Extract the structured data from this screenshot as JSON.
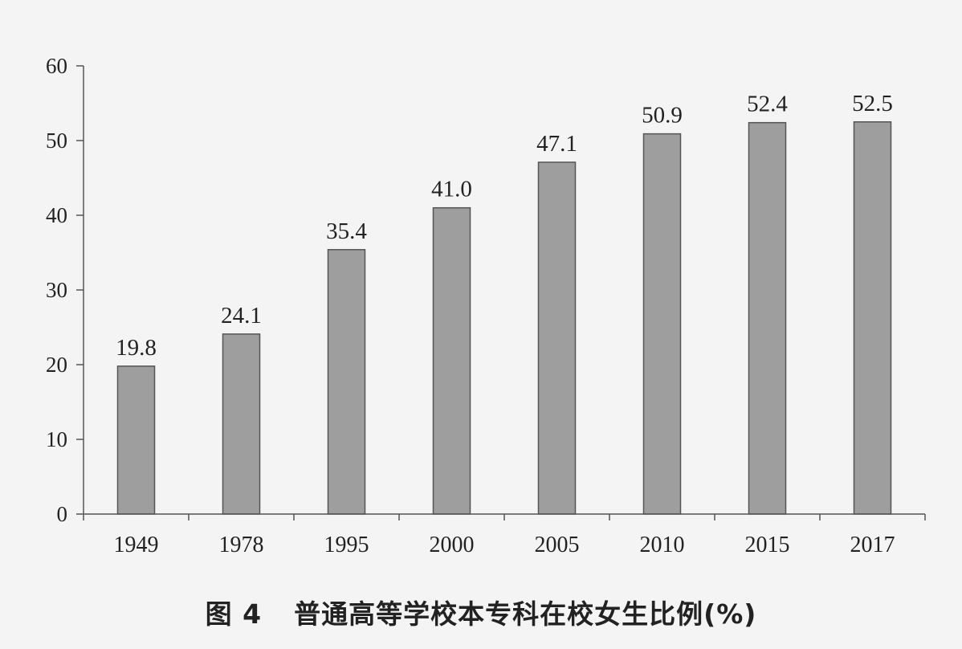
{
  "chart_data": {
    "type": "bar",
    "categories": [
      "1949",
      "1978",
      "1995",
      "2000",
      "2005",
      "2010",
      "2015",
      "2017"
    ],
    "values": [
      19.8,
      24.1,
      35.4,
      41.0,
      47.1,
      50.9,
      52.4,
      52.5
    ],
    "value_labels": [
      "19.8",
      "24.1",
      "35.4",
      "41.0",
      "47.1",
      "50.9",
      "52.4",
      "52.5"
    ],
    "ylim": [
      0,
      60
    ],
    "yticks": [
      0,
      10,
      20,
      30,
      40,
      50,
      60
    ],
    "xlabel": "",
    "ylabel": "",
    "grid": false,
    "bar_color": "#9e9e9e",
    "bar_edge_color": "#555555",
    "caption_number": "图 4",
    "caption_text": "普通高等学校本专科在校女生比例(%)"
  }
}
